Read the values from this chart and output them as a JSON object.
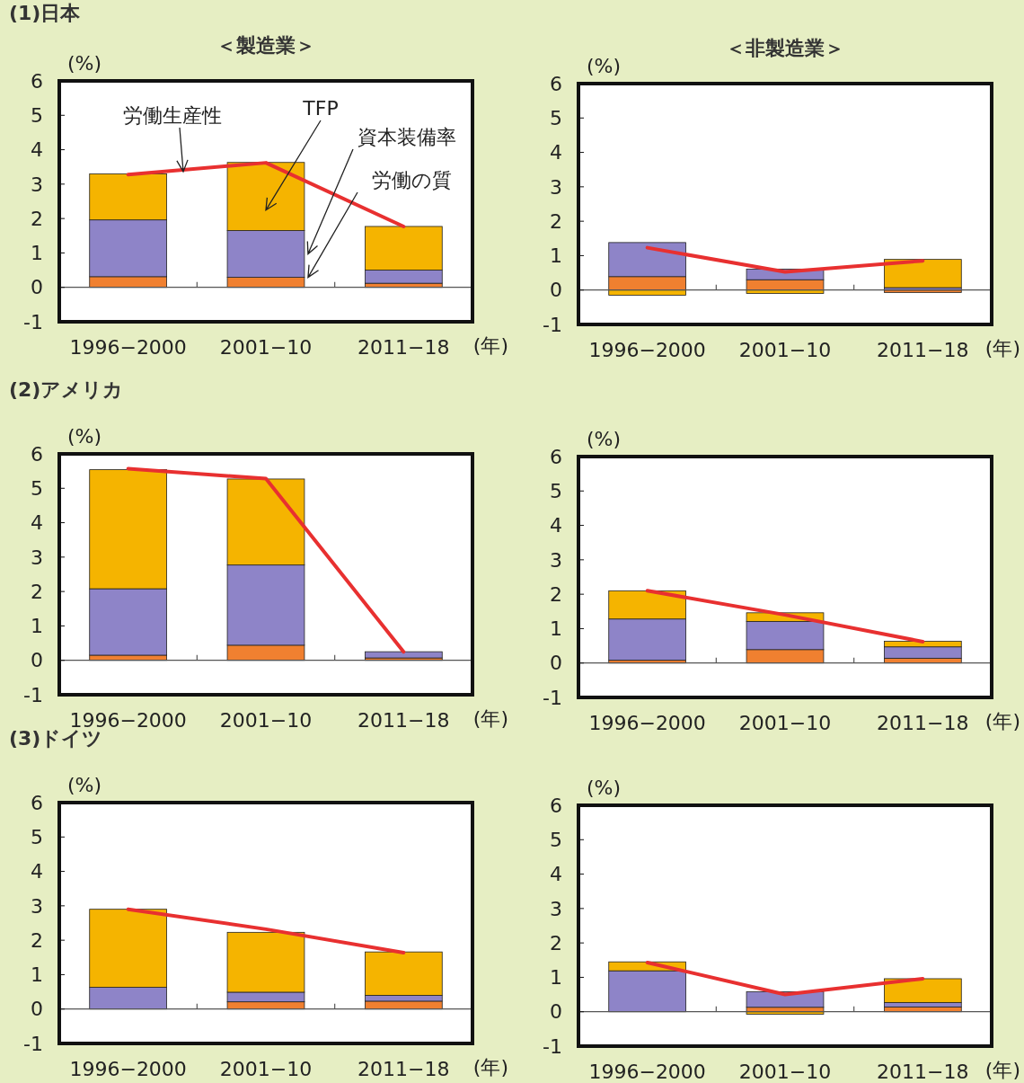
{
  "chart_data": [
    {
      "type": "bar",
      "title": "(1)日本",
      "subtitle": "＜製造業＞",
      "ylabel": "(%)",
      "xlabel": "(年)",
      "stacked": true,
      "categories": [
        "1996−2000",
        "2001−10",
        "2011−18"
      ],
      "ylim": [
        -1,
        6
      ],
      "yticks": [
        -1,
        0,
        1,
        2,
        3,
        4,
        5,
        6
      ],
      "series": [
        {
          "name": "労働の質",
          "color": "#f08030",
          "values": [
            0.31,
            0.29,
            0.12
          ]
        },
        {
          "name": "資本装備率",
          "color": "#8e84c8",
          "values": [
            1.65,
            1.36,
            0.38
          ]
        },
        {
          "name": "TFP",
          "color": "#f5b400",
          "values": [
            1.34,
            1.98,
            1.27
          ]
        },
        {
          "name": "労働生産性",
          "type": "line",
          "color": "#e83030",
          "values": [
            3.28,
            3.62,
            1.77
          ]
        }
      ]
    },
    {
      "type": "bar",
      "subtitle": "＜非製造業＞",
      "ylabel": "(%)",
      "xlabel": "(年)",
      "stacked": true,
      "categories": [
        "1996−2000",
        "2001−10",
        "2011−18"
      ],
      "ylim": [
        -1,
        6
      ],
      "yticks": [
        -1,
        0,
        1,
        2,
        3,
        4,
        5,
        6
      ],
      "series": [
        {
          "color": "#f08030",
          "values": [
            0.39,
            0.3,
            -0.07
          ]
        },
        {
          "color": "#8e84c8",
          "values": [
            0.99,
            0.31,
            0.07
          ]
        },
        {
          "color": "#f5b400",
          "values": [
            -0.15,
            -0.1,
            0.82
          ]
        },
        {
          "type": "line",
          "color": "#e83030",
          "values": [
            1.23,
            0.53,
            0.85
          ]
        }
      ]
    },
    {
      "type": "bar",
      "title": "(2)アメリカ",
      "ylabel": "(%)",
      "xlabel": "(年)",
      "stacked": true,
      "categories": [
        "1996−2000",
        "2001−10",
        "2011−18"
      ],
      "ylim": [
        -1,
        6
      ],
      "yticks": [
        -1,
        0,
        1,
        2,
        3,
        4,
        5,
        6
      ],
      "series": [
        {
          "color": "#f08030",
          "values": [
            0.15,
            0.44,
            0.07
          ]
        },
        {
          "color": "#8e84c8",
          "values": [
            1.93,
            2.33,
            0.18
          ]
        },
        {
          "color": "#f5b400",
          "values": [
            3.46,
            2.5,
            0.0
          ]
        },
        {
          "type": "line",
          "color": "#e83030",
          "values": [
            5.57,
            5.28,
            0.25
          ]
        }
      ]
    },
    {
      "type": "bar",
      "ylabel": "(%)",
      "xlabel": "(年)",
      "stacked": true,
      "categories": [
        "1996−2000",
        "2001−10",
        "2011−18"
      ],
      "ylim": [
        -1,
        6
      ],
      "yticks": [
        -1,
        0,
        1,
        2,
        3,
        4,
        5,
        6
      ],
      "series": [
        {
          "color": "#f08030",
          "values": [
            0.08,
            0.39,
            0.14
          ]
        },
        {
          "color": "#8e84c8",
          "values": [
            1.2,
            0.82,
            0.33
          ]
        },
        {
          "color": "#f5b400",
          "values": [
            0.82,
            0.25,
            0.16
          ]
        },
        {
          "type": "line",
          "color": "#e83030",
          "values": [
            2.1,
            1.4,
            0.62
          ]
        }
      ]
    },
    {
      "type": "bar",
      "title": "(3)ドイツ",
      "ylabel": "(%)",
      "xlabel": "(年)",
      "stacked": true,
      "categories": [
        "1996−2000",
        "2001−10",
        "2011−18"
      ],
      "ylim": [
        -1,
        6
      ],
      "yticks": [
        -1,
        0,
        1,
        2,
        3,
        4,
        5,
        6
      ],
      "series": [
        {
          "color": "#f08030",
          "values": [
            0.0,
            0.21,
            0.23
          ]
        },
        {
          "color": "#8e84c8",
          "values": [
            0.63,
            0.28,
            0.17
          ]
        },
        {
          "color": "#f5b400",
          "values": [
            2.27,
            1.74,
            1.26
          ]
        },
        {
          "type": "line",
          "color": "#e83030",
          "values": [
            2.9,
            2.32,
            1.64
          ]
        }
      ]
    },
    {
      "type": "bar",
      "ylabel": "(%)",
      "xlabel": "(年)",
      "stacked": true,
      "categories": [
        "1996−2000",
        "2001−10",
        "2011−18"
      ],
      "ylim": [
        -1,
        6
      ],
      "yticks": [
        -1,
        0,
        1,
        2,
        3,
        4,
        5,
        6
      ],
      "series": [
        {
          "color": "#f08030",
          "values": [
            0.0,
            0.13,
            0.14
          ]
        },
        {
          "color": "#8e84c8",
          "values": [
            1.19,
            0.45,
            0.13
          ]
        },
        {
          "color": "#f5b400",
          "values": [
            0.26,
            -0.07,
            0.69
          ]
        },
        {
          "type": "line",
          "color": "#e83030",
          "values": [
            1.43,
            0.5,
            0.96
          ]
        }
      ]
    }
  ]
}
